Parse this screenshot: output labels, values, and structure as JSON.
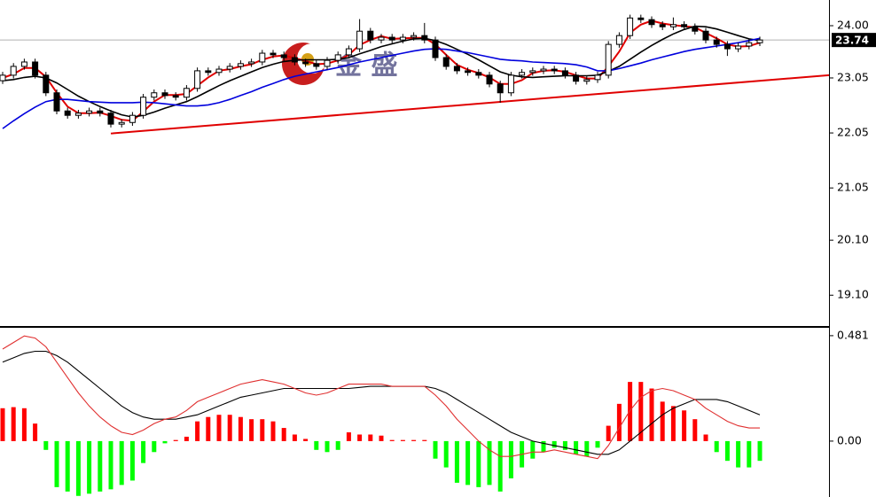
{
  "chart_data": [
    {
      "type": "candlestick",
      "open": [
        23.0,
        23.1,
        23.26,
        23.34,
        23.1,
        22.78,
        22.45,
        22.37,
        22.41,
        22.45,
        22.41,
        22.21,
        22.24,
        22.37,
        22.7,
        22.78,
        22.73,
        22.7,
        22.86,
        23.18,
        23.15,
        23.21,
        23.26,
        23.31,
        23.34,
        23.5,
        23.47,
        23.42,
        23.34,
        23.31,
        23.26,
        23.37,
        23.47,
        23.58,
        23.9,
        23.74,
        23.79,
        23.74,
        23.79,
        23.82,
        23.74,
        23.42,
        23.26,
        23.18,
        23.15,
        23.1,
        22.94,
        22.78,
        23.1,
        23.15,
        23.18,
        23.21,
        23.18,
        23.1,
        22.99,
        23.02,
        23.1,
        23.66,
        23.82,
        24.14,
        24.11,
        24.02,
        23.98,
        24.02,
        23.98,
        23.9,
        23.74,
        23.66,
        23.58,
        23.63,
        23.69
      ],
      "high": [
        23.16,
        23.32,
        23.4,
        23.4,
        23.16,
        22.84,
        22.51,
        22.47,
        22.51,
        22.51,
        22.47,
        22.3,
        22.43,
        22.76,
        22.84,
        22.84,
        22.79,
        22.92,
        23.24,
        23.24,
        23.27,
        23.32,
        23.37,
        23.4,
        23.56,
        23.56,
        23.53,
        23.48,
        23.4,
        23.37,
        23.43,
        23.53,
        23.64,
        24.12,
        23.96,
        23.85,
        23.85,
        23.85,
        23.88,
        24.05,
        23.8,
        23.48,
        23.32,
        23.24,
        23.21,
        23.16,
        23.0,
        23.16,
        23.21,
        23.24,
        23.27,
        23.27,
        23.24,
        23.16,
        23.08,
        23.16,
        23.72,
        23.88,
        24.2,
        24.2,
        24.17,
        24.08,
        24.15,
        24.08,
        24.04,
        23.96,
        23.8,
        23.72,
        23.69,
        23.75,
        23.8
      ],
      "low": [
        22.94,
        23.04,
        23.2,
        23.04,
        22.72,
        22.39,
        22.31,
        22.31,
        22.35,
        22.35,
        22.15,
        22.15,
        22.18,
        22.31,
        22.64,
        22.67,
        22.64,
        22.64,
        22.8,
        23.09,
        23.09,
        23.15,
        23.2,
        23.25,
        23.28,
        23.41,
        23.36,
        23.28,
        23.25,
        23.2,
        23.2,
        23.31,
        23.41,
        23.52,
        23.68,
        23.68,
        23.68,
        23.68,
        23.73,
        23.68,
        23.36,
        23.2,
        23.12,
        23.09,
        23.04,
        22.88,
        22.6,
        22.72,
        23.04,
        23.09,
        23.12,
        23.12,
        23.04,
        22.93,
        22.93,
        22.96,
        23.04,
        23.6,
        23.76,
        24.05,
        23.96,
        23.92,
        23.92,
        23.92,
        23.84,
        23.68,
        23.6,
        23.45,
        23.52,
        23.57,
        23.63
      ],
      "close": [
        23.1,
        23.26,
        23.34,
        23.1,
        22.78,
        22.45,
        22.37,
        22.41,
        22.45,
        22.41,
        22.21,
        22.24,
        22.37,
        22.7,
        22.78,
        22.73,
        22.7,
        22.86,
        23.18,
        23.15,
        23.21,
        23.26,
        23.31,
        23.34,
        23.5,
        23.47,
        23.42,
        23.34,
        23.31,
        23.26,
        23.37,
        23.47,
        23.58,
        23.9,
        23.74,
        23.79,
        23.74,
        23.79,
        23.82,
        23.74,
        23.42,
        23.26,
        23.18,
        23.15,
        23.1,
        22.94,
        22.78,
        23.1,
        23.15,
        23.18,
        23.21,
        23.18,
        23.1,
        22.99,
        23.02,
        23.1,
        23.66,
        23.82,
        24.14,
        24.11,
        24.02,
        23.98,
        24.02,
        23.98,
        23.9,
        23.74,
        23.66,
        23.58,
        23.63,
        23.69,
        23.74
      ],
      "up_color": "#ffffff",
      "down_color": "#000000",
      "lines": [
        {
          "color": "#e00000",
          "values": [
            23.05,
            23.12,
            23.23,
            23.23,
            23.07,
            22.78,
            22.53,
            22.41,
            22.41,
            22.42,
            22.36,
            22.29,
            22.27,
            22.44,
            22.62,
            22.74,
            22.74,
            22.76,
            22.91,
            23.06,
            23.18,
            23.21,
            23.26,
            23.3,
            23.38,
            23.44,
            23.46,
            23.41,
            23.36,
            23.3,
            23.31,
            23.37,
            23.47,
            23.65,
            23.74,
            23.81,
            23.76,
            23.77,
            23.78,
            23.78,
            23.66,
            23.47,
            23.29,
            23.2,
            23.14,
            23.06,
            22.94,
            22.94,
            23.01,
            23.14,
            23.18,
            23.19,
            23.16,
            23.1,
            23.04,
            23.04,
            23.26,
            23.53,
            23.87,
            24.02,
            24.09,
            24.04,
            24.01,
            23.99,
            23.97,
            23.87,
            23.77,
            23.66,
            23.62,
            23.63,
            23.69
          ]
        },
        {
          "color": "#000000",
          "values": [
            23.0,
            23.02,
            23.06,
            23.08,
            23.05,
            22.96,
            22.84,
            22.72,
            22.62,
            22.53,
            22.45,
            22.38,
            22.34,
            22.37,
            22.43,
            22.5,
            22.56,
            22.62,
            22.71,
            22.81,
            22.91,
            23.0,
            23.08,
            23.16,
            23.24,
            23.3,
            23.35,
            23.37,
            23.38,
            23.38,
            23.38,
            23.39,
            23.42,
            23.49,
            23.55,
            23.62,
            23.67,
            23.72,
            23.76,
            23.77,
            23.73,
            23.66,
            23.57,
            23.48,
            23.38,
            23.27,
            23.16,
            23.1,
            23.07,
            23.06,
            23.07,
            23.08,
            23.09,
            23.09,
            23.09,
            23.1,
            23.17,
            23.26,
            23.39,
            23.52,
            23.64,
            23.75,
            23.85,
            23.93,
            23.99,
            23.98,
            23.94,
            23.88,
            23.82,
            23.76,
            23.73
          ]
        },
        {
          "color": "#0000dd",
          "values": [
            22.13,
            22.27,
            22.4,
            22.52,
            22.62,
            22.66,
            22.66,
            22.64,
            22.62,
            22.61,
            22.6,
            22.6,
            22.6,
            22.61,
            22.6,
            22.58,
            22.56,
            22.54,
            22.54,
            22.56,
            22.6,
            22.66,
            22.73,
            22.8,
            22.88,
            22.95,
            23.02,
            23.08,
            23.12,
            23.16,
            23.2,
            23.24,
            23.29,
            23.34,
            23.38,
            23.42,
            23.46,
            23.5,
            23.54,
            23.57,
            23.58,
            23.57,
            23.54,
            23.51,
            23.47,
            23.43,
            23.39,
            23.37,
            23.36,
            23.34,
            23.33,
            23.32,
            23.31,
            23.29,
            23.25,
            23.18,
            23.18,
            23.22,
            23.27,
            23.32,
            23.38,
            23.43,
            23.48,
            23.53,
            23.57,
            23.6,
            23.63,
            23.66,
            23.69,
            23.73,
            23.77
          ]
        }
      ],
      "trend_line": {
        "color": "#e00000",
        "x": [
          10,
          76.4
        ],
        "values": [
          22.04,
          23.1
        ]
      },
      "last_price": 23.74,
      "watermark": "金 盛",
      "ylim": [
        18.54,
        24.467
      ],
      "yticks": [
        {
          "value": 24,
          "label": "24.00"
        },
        23.05,
        22.05,
        21.05,
        {
          "value": 20.1,
          "label": "20.10"
        },
        {
          "value": 19.1,
          "label": "19.10"
        }
      ]
    },
    {
      "type": "macd",
      "histogram": [
        0.15,
        0.155,
        0.15,
        0.08,
        -0.04,
        -0.21,
        -0.23,
        -0.25,
        -0.24,
        -0.23,
        -0.22,
        -0.2,
        -0.18,
        -0.1,
        -0.05,
        -0.01,
        0.005,
        0.02,
        0.09,
        0.11,
        0.12,
        0.12,
        0.11,
        0.1,
        0.1,
        0.09,
        0.06,
        0.03,
        0.01,
        -0.04,
        -0.05,
        -0.04,
        0.04,
        0.03,
        0.03,
        0.025,
        0.005,
        0.005,
        0.005,
        0.005,
        -0.08,
        -0.12,
        -0.19,
        -0.2,
        -0.21,
        -0.2,
        -0.23,
        -0.17,
        -0.12,
        -0.08,
        -0.05,
        -0.03,
        -0.04,
        -0.06,
        -0.07,
        -0.03,
        0.07,
        0.17,
        0.27,
        0.27,
        0.24,
        0.18,
        0.16,
        0.14,
        0.1,
        0.03,
        -0.05,
        -0.09,
        -0.12,
        -0.12,
        -0.09
      ],
      "pos_color": "#ff0000",
      "neg_color": "#00ff00",
      "lines": [
        {
          "color": "#000000",
          "values": [
            0.36,
            0.38,
            0.4,
            0.41,
            0.41,
            0.39,
            0.36,
            0.32,
            0.28,
            0.24,
            0.2,
            0.16,
            0.13,
            0.11,
            0.1,
            0.1,
            0.1,
            0.11,
            0.12,
            0.14,
            0.16,
            0.18,
            0.2,
            0.21,
            0.22,
            0.23,
            0.24,
            0.24,
            0.24,
            0.24,
            0.24,
            0.24,
            0.24,
            0.245,
            0.25,
            0.25,
            0.25,
            0.25,
            0.25,
            0.25,
            0.24,
            0.22,
            0.19,
            0.16,
            0.13,
            0.1,
            0.07,
            0.04,
            0.02,
            0.0,
            -0.01,
            -0.02,
            -0.03,
            -0.04,
            -0.05,
            -0.06,
            -0.06,
            -0.04,
            0.0,
            0.04,
            0.08,
            0.12,
            0.15,
            0.17,
            0.19,
            0.19,
            0.19,
            0.18,
            0.16,
            0.14,
            0.12
          ]
        },
        {
          "color": "#e03030",
          "values": [
            0.42,
            0.45,
            0.48,
            0.47,
            0.43,
            0.36,
            0.29,
            0.22,
            0.16,
            0.11,
            0.07,
            0.04,
            0.03,
            0.05,
            0.08,
            0.1,
            0.11,
            0.14,
            0.18,
            0.2,
            0.22,
            0.24,
            0.26,
            0.27,
            0.28,
            0.27,
            0.26,
            0.24,
            0.22,
            0.21,
            0.22,
            0.24,
            0.26,
            0.26,
            0.26,
            0.26,
            0.25,
            0.25,
            0.25,
            0.25,
            0.21,
            0.16,
            0.1,
            0.05,
            0.0,
            -0.04,
            -0.07,
            -0.07,
            -0.06,
            -0.05,
            -0.05,
            -0.04,
            -0.05,
            -0.06,
            -0.07,
            -0.08,
            -0.02,
            0.06,
            0.14,
            0.2,
            0.23,
            0.24,
            0.23,
            0.21,
            0.19,
            0.15,
            0.12,
            0.09,
            0.07,
            0.06,
            0.06
          ]
        }
      ],
      "ylim": [
        -0.255,
        0.517
      ],
      "yticks": [
        0.481,
        {
          "value": 0,
          "label": "0.00"
        }
      ]
    }
  ]
}
